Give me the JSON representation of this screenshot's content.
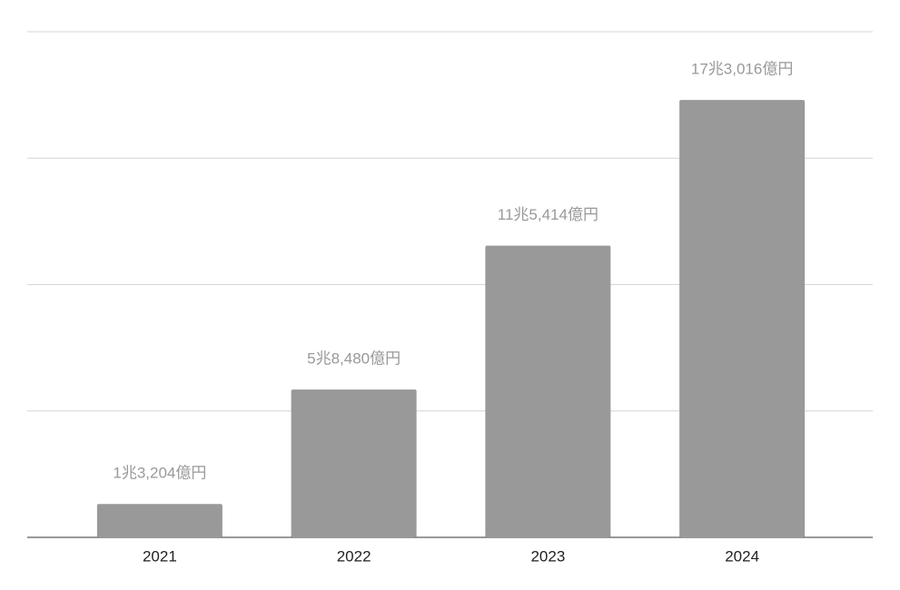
{
  "chart_data": {
    "type": "bar",
    "categories": [
      "2021",
      "2022",
      "2023",
      "2024"
    ],
    "values": [
      13204,
      58480,
      115414,
      173016
    ],
    "value_labels": [
      "1兆3,204億円",
      "5兆8,480億円",
      "11兆5,414億円",
      "17兆3,016億円"
    ],
    "color": "#999999",
    "ylim": [
      0,
      200000
    ],
    "yticks": [
      0,
      50000,
      100000,
      150000,
      200000
    ],
    "grid": true
  }
}
